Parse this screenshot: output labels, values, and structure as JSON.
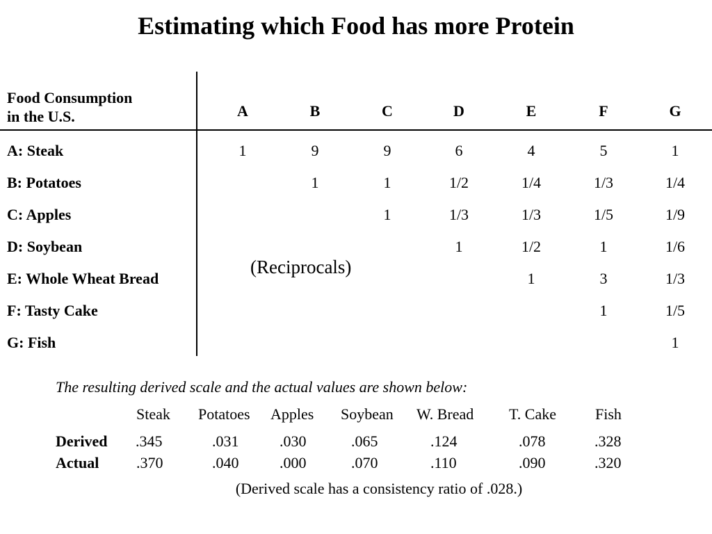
{
  "title": "Estimating which Food has more Protein",
  "matrix": {
    "corner_line1": "Food Consumption",
    "corner_line2": "in the U.S.",
    "columns": [
      "A",
      "B",
      "C",
      "D",
      "E",
      "F",
      "G"
    ],
    "rows": [
      {
        "label": "A: Steak",
        "cells": [
          "1",
          "9",
          "9",
          "6",
          "4",
          "5",
          "1"
        ]
      },
      {
        "label": "B: Potatoes",
        "cells": [
          "",
          "1",
          "1",
          "1/2",
          "1/4",
          "1/3",
          "1/4"
        ]
      },
      {
        "label": "C: Apples",
        "cells": [
          "",
          "",
          "1",
          "1/3",
          "1/3",
          "1/5",
          "1/9"
        ]
      },
      {
        "label": "D: Soybean",
        "cells": [
          "",
          "",
          "",
          "1",
          "1/2",
          "1",
          "1/6"
        ]
      },
      {
        "label": "E: Whole Wheat Bread",
        "cells": [
          "",
          "",
          "",
          "",
          "1",
          "3",
          "1/3"
        ]
      },
      {
        "label": "F: Tasty Cake",
        "cells": [
          "",
          "",
          "",
          "",
          "",
          "1",
          "1/5"
        ]
      },
      {
        "label": "G: Fish",
        "cells": [
          "",
          "",
          "",
          "",
          "",
          "",
          "1"
        ]
      }
    ],
    "reciprocals_label": "(Reciprocals)"
  },
  "scale": {
    "note": "The resulting derived scale and the actual values are shown below:",
    "headers": [
      "Steak",
      "Potatoes",
      "Apples",
      "Soybean",
      "W. Bread",
      "T. Cake",
      "Fish"
    ],
    "derived_label": "Derived",
    "derived": [
      ".345",
      ".031",
      ".030",
      ".065",
      ".124",
      ".078",
      ".328"
    ],
    "actual_label": "Actual",
    "actual": [
      ".370",
      ".040",
      ".000",
      ".070",
      ".110",
      ".090",
      ".320"
    ]
  },
  "footnote": "(Derived scale has a consistency ratio of .028.)"
}
